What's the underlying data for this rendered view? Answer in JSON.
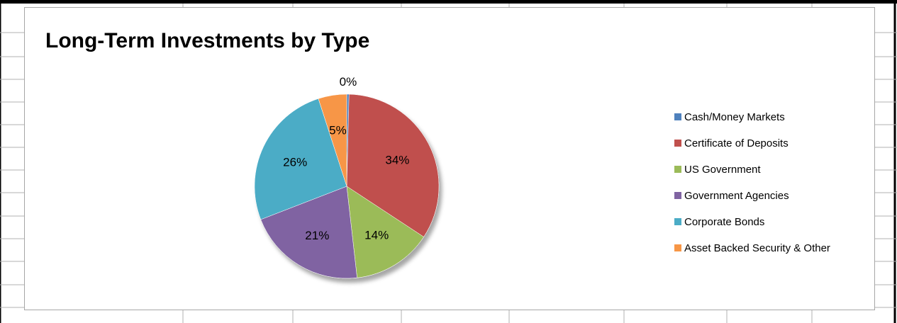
{
  "chart_data": {
    "type": "pie",
    "title": "Long-Term Investments by Type",
    "categories": [
      "Cash/Money Markets",
      "Certificate of Deposits",
      "US Government",
      "Government Agencies",
      "Corporate Bonds",
      "Asset Backed Security & Other"
    ],
    "values": [
      0.4,
      34,
      14,
      21,
      26,
      5
    ],
    "data_labels": [
      "0%",
      "34%",
      "14%",
      "21%",
      "26%",
      "5%"
    ],
    "colors": [
      "#4f81bd",
      "#c0504d",
      "#9bbb59",
      "#8064a2",
      "#4bacc6",
      "#f79646"
    ],
    "legend_position": "right"
  }
}
